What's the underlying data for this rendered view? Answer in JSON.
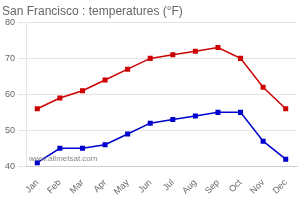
{
  "chart_data": {
    "type": "line",
    "title": "San Francisco : temperatures (°F)",
    "categories": [
      "Jan",
      "Feb",
      "Mar",
      "Apr",
      "May",
      "Jun",
      "Jul",
      "Aug",
      "Sep",
      "Oct",
      "Nov",
      "Dec"
    ],
    "series": [
      {
        "color": "#cc0000",
        "values": [
          56,
          59,
          61,
          64,
          67,
          70,
          71,
          72,
          73,
          70,
          62,
          56
        ]
      },
      {
        "color": "#0000cc",
        "values": [
          41,
          45,
          45,
          46,
          49,
          52,
          53,
          54,
          55,
          55,
          47,
          42
        ]
      }
    ],
    "marker": "square",
    "ylim": [
      40,
      80
    ],
    "yticks": [
      40,
      50,
      60,
      70,
      80
    ],
    "grid": "y",
    "annotations": [
      "www.allmetsat.com"
    ]
  }
}
